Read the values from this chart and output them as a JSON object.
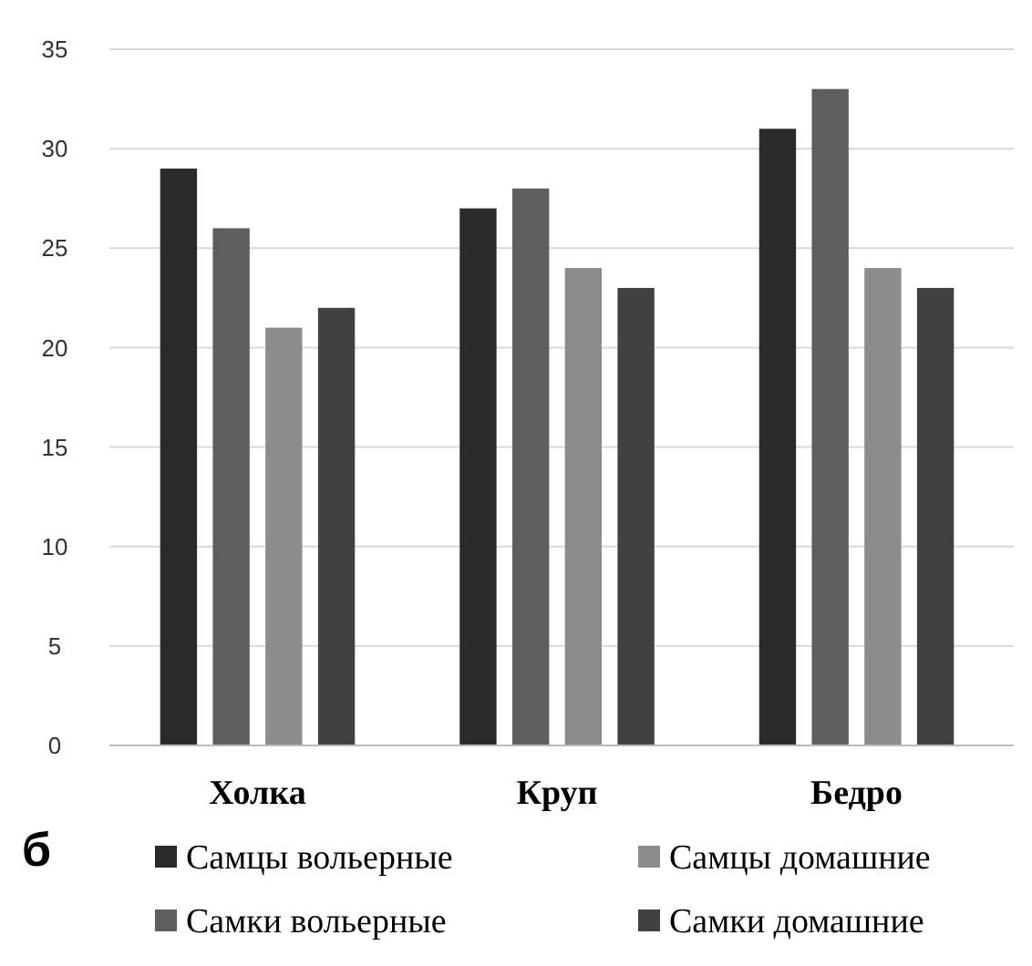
{
  "chart_data": {
    "type": "bar",
    "categories": [
      "Холка",
      "Круп",
      "Бедро"
    ],
    "series": [
      {
        "name": "Самцы вольерные",
        "color": "#2b2b2b",
        "values": [
          29,
          27,
          31
        ]
      },
      {
        "name": "Самки вольерные",
        "color": "#5e5e5e",
        "values": [
          26,
          28,
          33
        ]
      },
      {
        "name": "Самцы домашние",
        "color": "#8c8c8c",
        "values": [
          21,
          24,
          24
        ]
      },
      {
        "name": "Самки домашние",
        "color": "#414141",
        "values": [
          22,
          23,
          23
        ]
      }
    ],
    "ylim": [
      0,
      35
    ],
    "yticks": [
      0,
      5,
      10,
      15,
      20,
      25,
      30,
      35
    ],
    "grid": "y",
    "legend": "bottom",
    "annotations": [
      "б"
    ]
  }
}
